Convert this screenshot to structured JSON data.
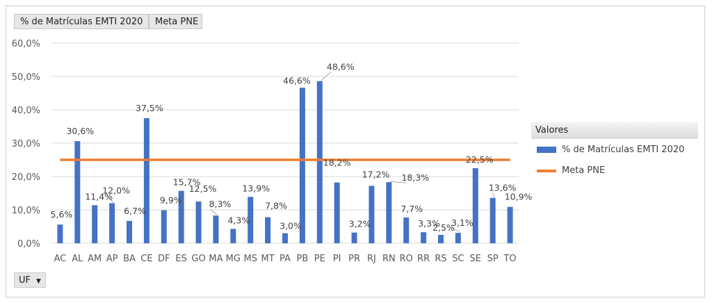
{
  "buttons": {
    "series1": "% de Matrículas EMTI 2020",
    "series2": "Meta PNE",
    "axis_field": "UF",
    "axis_field_icon": "dropdown-caret-icon"
  },
  "legend": {
    "title": "Valores",
    "items": [
      {
        "label": "% de Matrículas EMTI 2020",
        "color": "#4472c4"
      },
      {
        "label": "Meta PNE",
        "color": "#ed7d31"
      }
    ]
  },
  "chart_data": {
    "type": "bar",
    "categories": [
      "AC",
      "AL",
      "AM",
      "AP",
      "BA",
      "CE",
      "DF",
      "ES",
      "GO",
      "MA",
      "MG",
      "MS",
      "MT",
      "PA",
      "PB",
      "PE",
      "PI",
      "PR",
      "RJ",
      "RN",
      "RO",
      "RR",
      "RS",
      "SC",
      "SE",
      "SP",
      "TO"
    ],
    "series": [
      {
        "name": "% de Matrículas EMTI 2020",
        "type": "bar",
        "color": "#4472c4",
        "values": [
          5.6,
          30.6,
          11.4,
          12.0,
          6.7,
          37.5,
          9.9,
          15.7,
          12.5,
          8.3,
          4.3,
          13.9,
          7.8,
          3.0,
          46.6,
          48.6,
          18.2,
          3.2,
          17.2,
          18.3,
          7.7,
          3.3,
          2.5,
          3.1,
          22.5,
          13.6,
          10.9
        ],
        "labels": [
          "5,6%",
          "30,6%",
          "11,4%",
          "12,0%",
          "6,7%",
          "37,5%",
          "9,9%",
          "15,7%",
          "12,5%",
          "8,3%",
          "4,3%",
          "13,9%",
          "7,8%",
          "3,0%",
          "46,6%",
          "48,6%",
          "18,2%",
          "3,2%",
          "17,2%",
          "18,3%",
          "7,7%",
          "3,3%",
          "2,5%",
          "3,1%",
          "22,5%",
          "13,6%",
          "10,9%"
        ]
      },
      {
        "name": "Meta PNE",
        "type": "line",
        "color": "#ed7d31",
        "value": 25.0
      }
    ],
    "y_ticks": [
      "0,0%",
      "10,0%",
      "20,0%",
      "30,0%",
      "40,0%",
      "50,0%",
      "60,0%"
    ],
    "ylim": [
      0,
      60
    ],
    "grid": true,
    "legend_position": "right"
  }
}
